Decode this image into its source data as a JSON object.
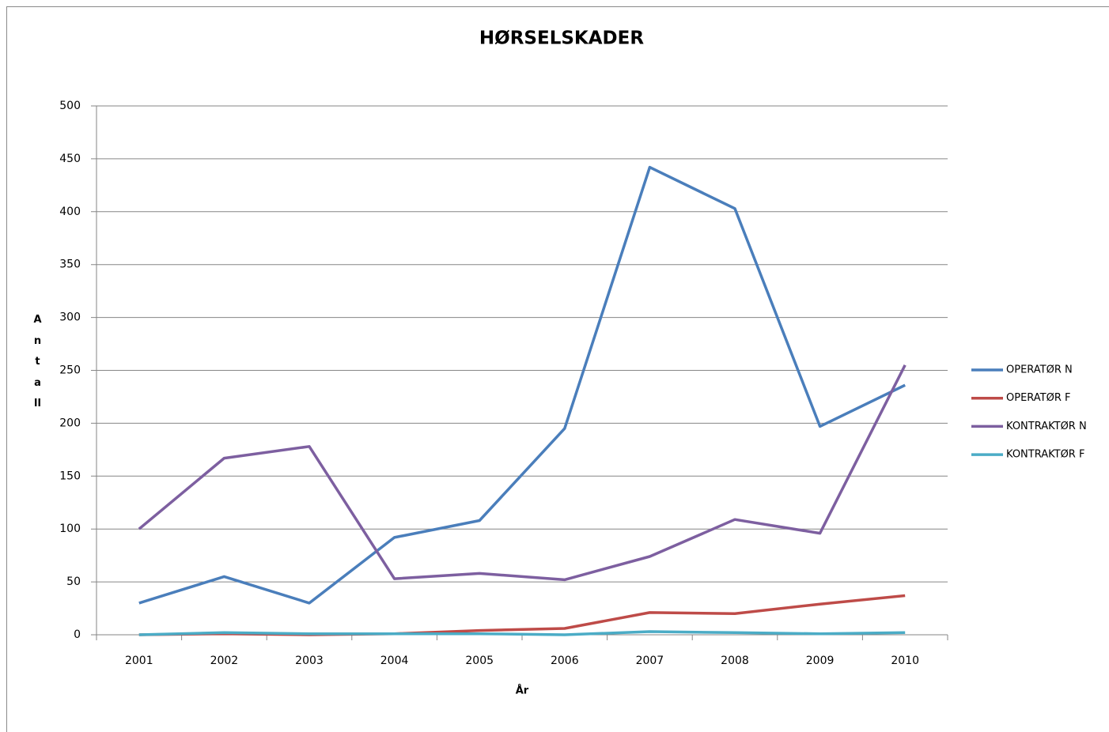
{
  "chart_data": {
    "type": "line",
    "title": "HØRSELSKADER",
    "x_label": "År",
    "y_label": "Antall",
    "categories": [
      "2001",
      "2002",
      "2003",
      "2004",
      "2005",
      "2006",
      "2007",
      "2008",
      "2009",
      "2010"
    ],
    "series": [
      {
        "name": "OPERATØR N",
        "color": "#4a7ebb",
        "values": [
          30,
          55,
          30,
          92,
          108,
          195,
          442,
          403,
          197,
          236
        ]
      },
      {
        "name": "OPERATØR F",
        "color": "#be4b48",
        "values": [
          0,
          1,
          0,
          1,
          4,
          6,
          21,
          20,
          29,
          37
        ]
      },
      {
        "name": "KONTRAKTØR N",
        "color": "#7d5fa0",
        "values": [
          100,
          167,
          178,
          53,
          58,
          52,
          74,
          109,
          96,
          255
        ]
      },
      {
        "name": "KONTRAKTØR F",
        "color": "#4bacc6",
        "values": [
          0,
          2,
          1,
          1,
          1,
          0,
          3,
          2,
          1,
          2
        ]
      }
    ],
    "ylim": [
      0,
      500
    ],
    "yticks": [
      0,
      50,
      100,
      150,
      200,
      250,
      300,
      350,
      400,
      450,
      500
    ],
    "grid": true,
    "legend": "right"
  }
}
